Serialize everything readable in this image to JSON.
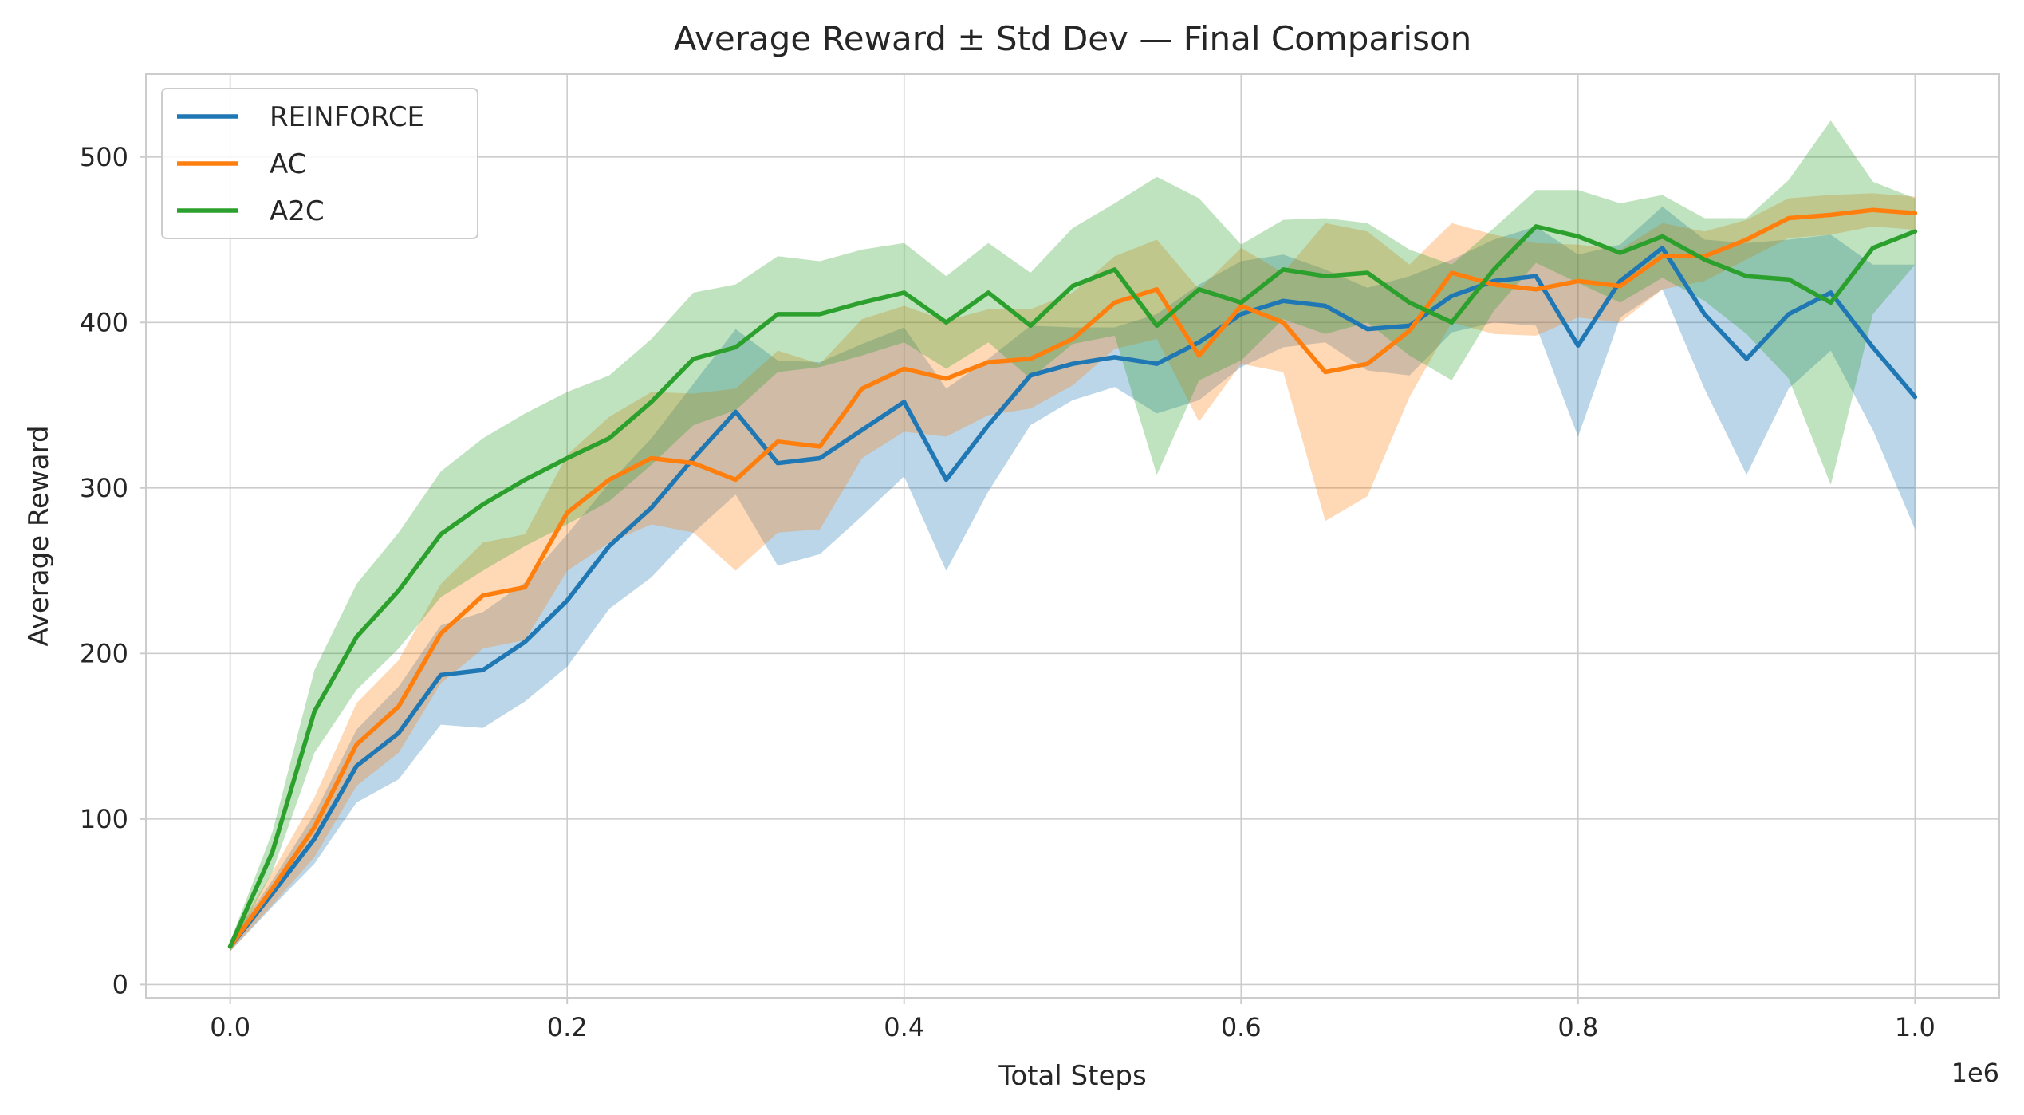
{
  "chart_data": {
    "type": "line",
    "title": "Average Reward ± Std Dev — Final Comparison",
    "xlabel": "Total Steps",
    "ylabel": "Average Reward",
    "x_offset_label": "1e6",
    "xlim": [
      -0.05,
      1.05
    ],
    "ylim": [
      -8,
      550
    ],
    "x_ticks": [
      0.0,
      0.2,
      0.4,
      0.6,
      0.8,
      1.0
    ],
    "x_tick_labels": [
      "0.0",
      "0.2",
      "0.4",
      "0.6",
      "0.8",
      "1.0"
    ],
    "y_ticks": [
      0,
      100,
      200,
      300,
      400,
      500
    ],
    "y_tick_labels": [
      "0",
      "100",
      "200",
      "300",
      "400",
      "500"
    ],
    "grid": true,
    "legend_position": "upper-left",
    "x": [
      0.0,
      0.025,
      0.05,
      0.075,
      0.1,
      0.125,
      0.15,
      0.175,
      0.2,
      0.225,
      0.25,
      0.275,
      0.3,
      0.325,
      0.35,
      0.375,
      0.4,
      0.425,
      0.45,
      0.475,
      0.5,
      0.525,
      0.55,
      0.575,
      0.6,
      0.625,
      0.65,
      0.675,
      0.7,
      0.725,
      0.75,
      0.775,
      0.8,
      0.825,
      0.85,
      0.875,
      0.9,
      0.925,
      0.95,
      0.975,
      1.0
    ],
    "series": [
      {
        "name": "REINFORCE",
        "color": "#1f77b4",
        "values": [
          23,
          55,
          88,
          132,
          152,
          187,
          190,
          207,
          232,
          265,
          288,
          318,
          346,
          315,
          318,
          335,
          352,
          305,
          338,
          368,
          375,
          379,
          375,
          388,
          405,
          413,
          410,
          396,
          398,
          416,
          425,
          428,
          386,
          425,
          445,
          405,
          378,
          405,
          418,
          385,
          355
        ],
        "std": [
          3,
          8,
          15,
          22,
          28,
          30,
          35,
          36,
          40,
          38,
          42,
          45,
          50,
          62,
          58,
          52,
          45,
          55,
          40,
          30,
          22,
          18,
          30,
          35,
          32,
          28,
          22,
          25,
          30,
          22,
          25,
          30,
          55,
          22,
          25,
          45,
          70,
          45,
          35,
          50,
          80
        ]
      },
      {
        "name": "AC",
        "color": "#ff7f0e",
        "values": [
          23,
          58,
          95,
          145,
          168,
          212,
          235,
          240,
          285,
          305,
          318,
          315,
          305,
          328,
          325,
          360,
          372,
          366,
          376,
          378,
          390,
          412,
          420,
          380,
          410,
          400,
          370,
          375,
          395,
          430,
          423,
          420,
          425,
          422,
          440,
          440,
          450,
          463,
          465,
          468,
          466
        ],
        "std": [
          3,
          10,
          18,
          25,
          28,
          30,
          32,
          32,
          35,
          38,
          40,
          42,
          55,
          55,
          50,
          42,
          38,
          35,
          32,
          30,
          28,
          28,
          30,
          40,
          35,
          30,
          90,
          80,
          40,
          30,
          30,
          28,
          22,
          22,
          20,
          15,
          12,
          12,
          12,
          10,
          10
        ]
      },
      {
        "name": "A2C",
        "color": "#2ca02c",
        "values": [
          23,
          80,
          165,
          210,
          238,
          272,
          290,
          305,
          318,
          330,
          352,
          378,
          385,
          405,
          405,
          412,
          418,
          400,
          418,
          398,
          422,
          432,
          398,
          420,
          412,
          432,
          428,
          430,
          412,
          400,
          432,
          458,
          452,
          442,
          452,
          438,
          428,
          426,
          412,
          445,
          455
        ],
        "std": [
          3,
          12,
          25,
          32,
          35,
          38,
          40,
          40,
          40,
          38,
          38,
          40,
          38,
          35,
          32,
          32,
          30,
          28,
          30,
          32,
          35,
          40,
          90,
          55,
          35,
          30,
          35,
          30,
          32,
          35,
          25,
          22,
          28,
          30,
          25,
          25,
          35,
          60,
          110,
          40,
          20
        ]
      }
    ]
  }
}
